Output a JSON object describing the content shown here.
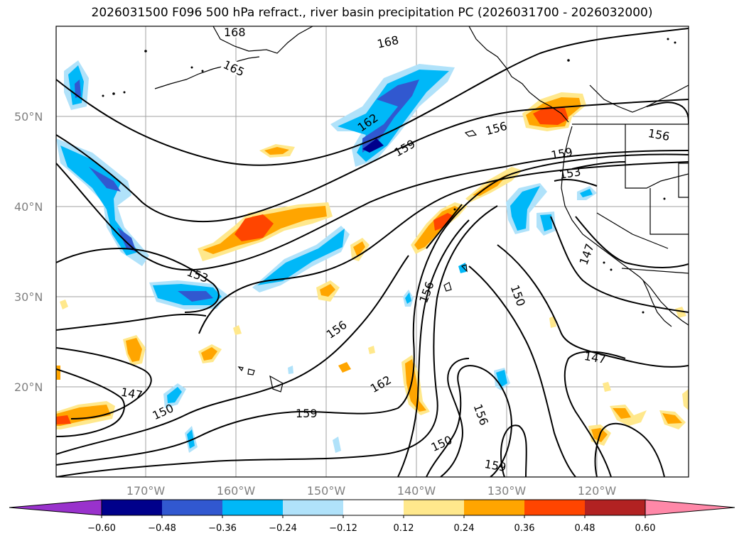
{
  "title": "2026031500 F096 500 hPa refract., river basin precipitation PC (2026031700 - 2026032000)",
  "lat_labels": [
    "20°N",
    "30°N",
    "40°N",
    "50°N"
  ],
  "lon_labels": [
    "170°W",
    "160°W",
    "150°W",
    "140°W",
    "130°W",
    "120°W"
  ],
  "contour_labels": [
    "168",
    "168",
    "165",
    "162",
    "159",
    "156",
    "156",
    "159",
    "153",
    "153",
    "156",
    "156",
    "162",
    "159",
    "159",
    "150",
    "147",
    "147",
    "147",
    "150",
    "156",
    "150"
  ],
  "colorbar": {
    "ticks": [
      "−0.60",
      "−0.48",
      "−0.36",
      "−0.24",
      "−0.12",
      "0.12",
      "0.24",
      "0.36",
      "0.48",
      "0.60"
    ],
    "colors": [
      "#9932cc",
      "#00008b",
      "#3158d0",
      "#00b8f8",
      "#b0e2fa",
      "#ffffff",
      "#ffe88c",
      "#ffa500",
      "#ff4500",
      "#b22222",
      "#ff88a8"
    ]
  },
  "map_colors": {
    "land": "#000000",
    "grid": "#a0a0a0",
    "contour": "#000000"
  }
}
